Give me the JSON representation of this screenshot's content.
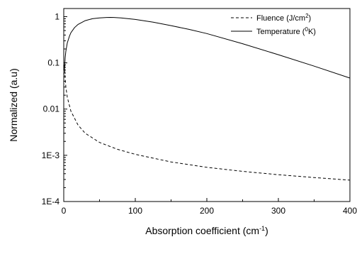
{
  "chart_data": {
    "type": "line",
    "title": "",
    "xlabel": "Absorption coefficient (cm",
    "xlabel_sup": "-1",
    "xlabel_end": ")",
    "ylabel": "Normalized (a.u)",
    "xlim": [
      0,
      400
    ],
    "ylim": [
      0.0001,
      1.5
    ],
    "yscale": "log",
    "grid": false,
    "legend_position": "top-right",
    "x_ticks": [
      {
        "value": 0,
        "label": "0"
      },
      {
        "value": 100,
        "label": "100"
      },
      {
        "value": 200,
        "label": "200"
      },
      {
        "value": 300,
        "label": "300"
      },
      {
        "value": 400,
        "label": "400"
      }
    ],
    "y_ticks": [
      {
        "value": 1,
        "label": "1"
      },
      {
        "value": 0.1,
        "label": "0.1"
      },
      {
        "value": 0.01,
        "label": "0.01"
      },
      {
        "value": 0.001,
        "label": "1E-3"
      },
      {
        "value": 0.0001,
        "label": "1E-4"
      }
    ],
    "series": [
      {
        "name": "Fluence (J/cm",
        "name_sup": "2",
        "name_end": ")",
        "style": "dashed",
        "color": "#000000",
        "x": [
          1,
          2,
          3,
          5,
          10,
          20,
          30,
          50,
          75,
          100,
          150,
          200,
          250,
          300,
          350,
          400
        ],
        "y": [
          0.09,
          0.045,
          0.03,
          0.018,
          0.009,
          0.0045,
          0.003,
          0.0019,
          0.00135,
          0.00105,
          0.00072,
          0.00055,
          0.00045,
          0.00038,
          0.00033,
          0.00029
        ]
      },
      {
        "name": "Temperature (",
        "name_sup": "0",
        "name_end": "K)",
        "style": "solid",
        "color": "#000000",
        "x": [
          1,
          2,
          3,
          5,
          8,
          10,
          15,
          20,
          30,
          40,
          50,
          60,
          65,
          70,
          80,
          100,
          125,
          150,
          175,
          200,
          250,
          300,
          350,
          400
        ],
        "y": [
          0.07,
          0.13,
          0.18,
          0.27,
          0.38,
          0.45,
          0.58,
          0.68,
          0.82,
          0.9,
          0.94,
          0.96,
          0.965,
          0.96,
          0.94,
          0.87,
          0.76,
          0.64,
          0.53,
          0.43,
          0.26,
          0.15,
          0.085,
          0.047
        ]
      }
    ]
  }
}
